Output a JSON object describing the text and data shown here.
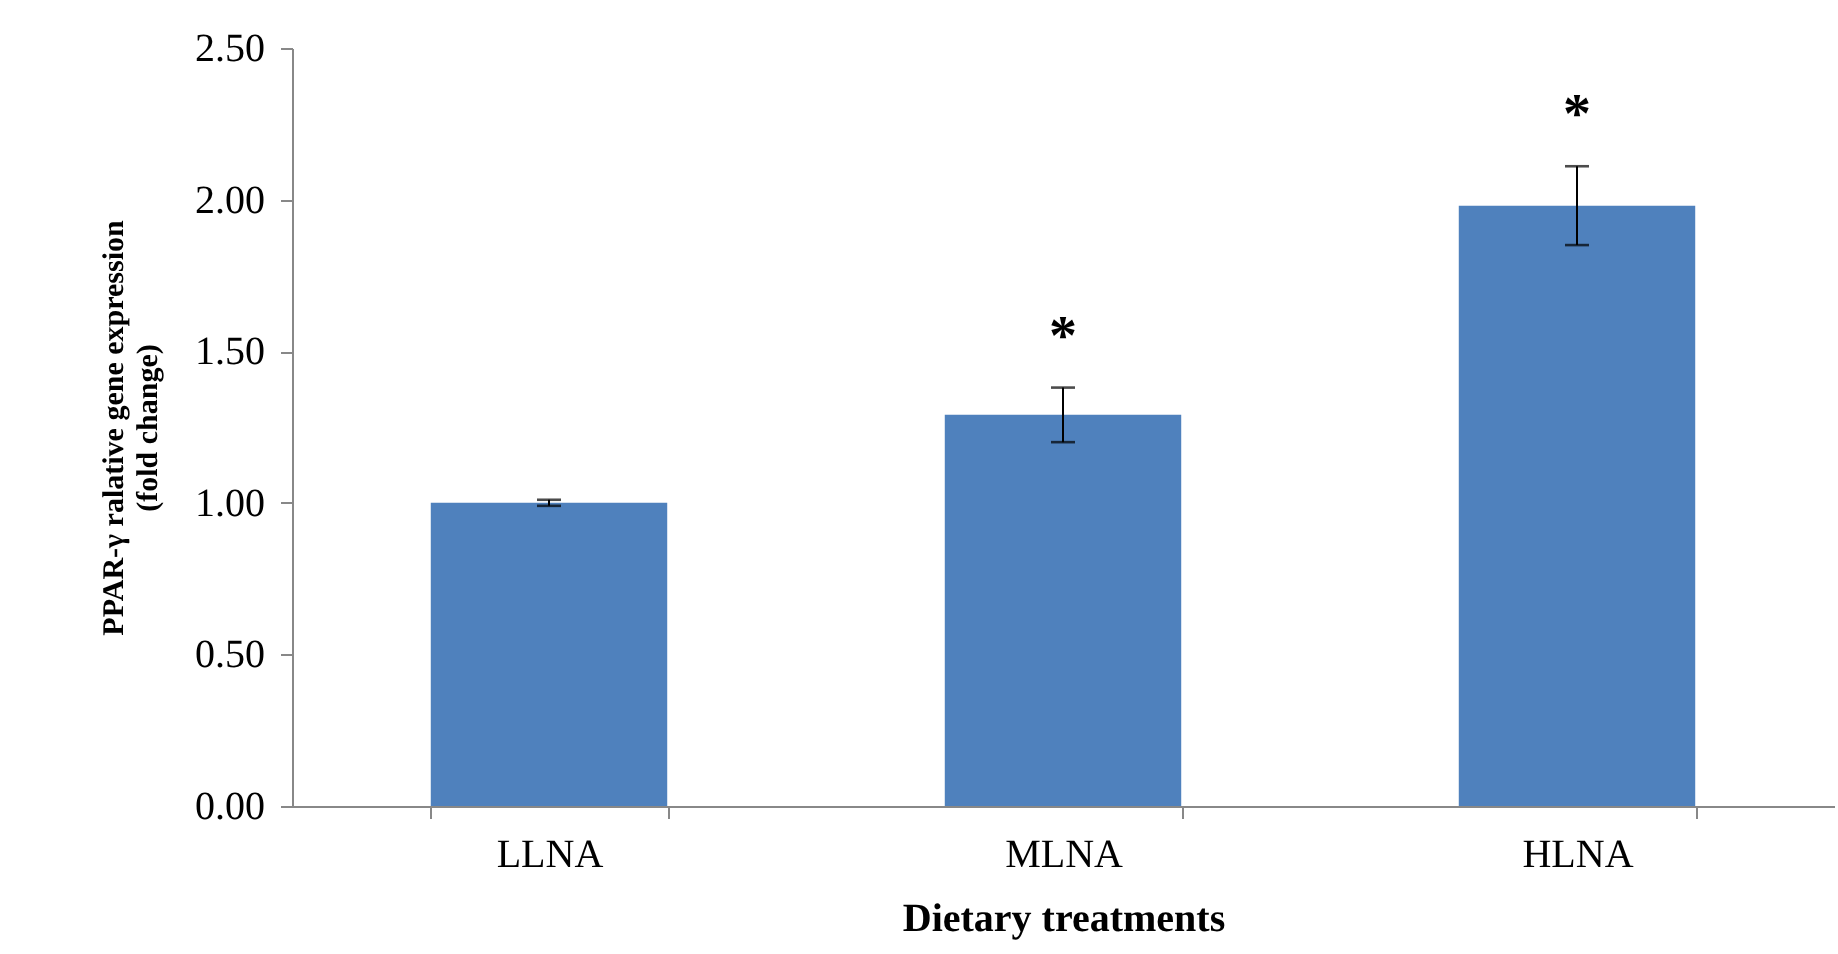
{
  "chart_data": {
    "type": "bar",
    "xlabel": "Dietary treatments",
    "ylabel": "PPAR-γ ralative gene expression\n(fold change)",
    "categories": [
      "LLNA",
      "MLNA",
      "HLNA"
    ],
    "values": [
      1.0,
      1.29,
      1.98
    ],
    "errors": [
      0.01,
      0.09,
      0.13
    ],
    "color": "#4f81bd",
    "ylim": [
      0,
      2.5
    ],
    "yticks": [
      {
        "value": 0,
        "label": "0.00"
      },
      {
        "value": 0.5,
        "label": "0.50"
      },
      {
        "value": 1,
        "label": "1.00"
      },
      {
        "value": 1.5,
        "label": "1.50"
      },
      {
        "value": 2,
        "label": "2.00"
      },
      {
        "value": 2.5,
        "label": "2.50"
      }
    ],
    "grid": false,
    "annotations": [
      "*",
      "*"
    ]
  }
}
